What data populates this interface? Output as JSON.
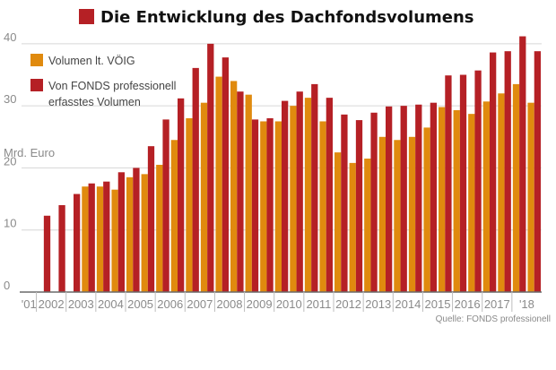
{
  "chart_data": {
    "type": "bar",
    "title": "Die Entwicklung des Dachfondsvolumens",
    "unit_label": "Mrd. Euro",
    "source": "Quelle: FONDS professionell",
    "ylim": [
      0,
      42
    ],
    "yticks": [
      0,
      10,
      20,
      30,
      40
    ],
    "grid": true,
    "legend_position": "top-left",
    "year_labels": [
      "'01",
      "2002",
      "2003",
      "2004",
      "2005",
      "2006",
      "2007",
      "2008",
      "2009",
      "2010",
      "2011",
      "2012",
      "2013",
      "2014",
      "2015",
      "2016",
      "2017",
      "'18"
    ],
    "periods": 35,
    "series": [
      {
        "name": "Volumen lt. VÖIG",
        "color": "#e08a0e",
        "values": [
          17.0,
          17.0,
          16.5,
          18.5,
          19.0,
          20.5,
          24.5,
          28.0,
          30.5,
          34.7,
          34.0,
          31.8,
          27.5,
          27.5,
          30.0,
          31.3,
          27.5,
          22.5,
          20.8,
          21.5,
          25.0,
          24.5,
          25.0,
          26.5,
          29.8,
          29.3,
          28.7,
          30.7,
          32.0,
          33.5,
          30.5
        ]
      },
      {
        "name": "Von FONDS professionell erfasstes Volumen",
        "color": "#b52025",
        "values": [
          12.3,
          14.0,
          15.8,
          17.5,
          17.8,
          19.3,
          20.0,
          23.5,
          27.8,
          31.2,
          36.1,
          40.0,
          37.8,
          32.3,
          27.8,
          28.0,
          30.8,
          32.3,
          33.5,
          31.3,
          28.6,
          27.7,
          28.9,
          29.9,
          30.0,
          30.2,
          30.5,
          34.9,
          35.0,
          35.7,
          38.6,
          38.8,
          41.2,
          38.8
        ]
      }
    ],
    "legend": [
      {
        "lines": [
          "Volumen lt. VÖIG"
        ]
      },
      {
        "lines": [
          "Von FONDS professionell",
          "erfasstes Volumen"
        ]
      }
    ]
  }
}
